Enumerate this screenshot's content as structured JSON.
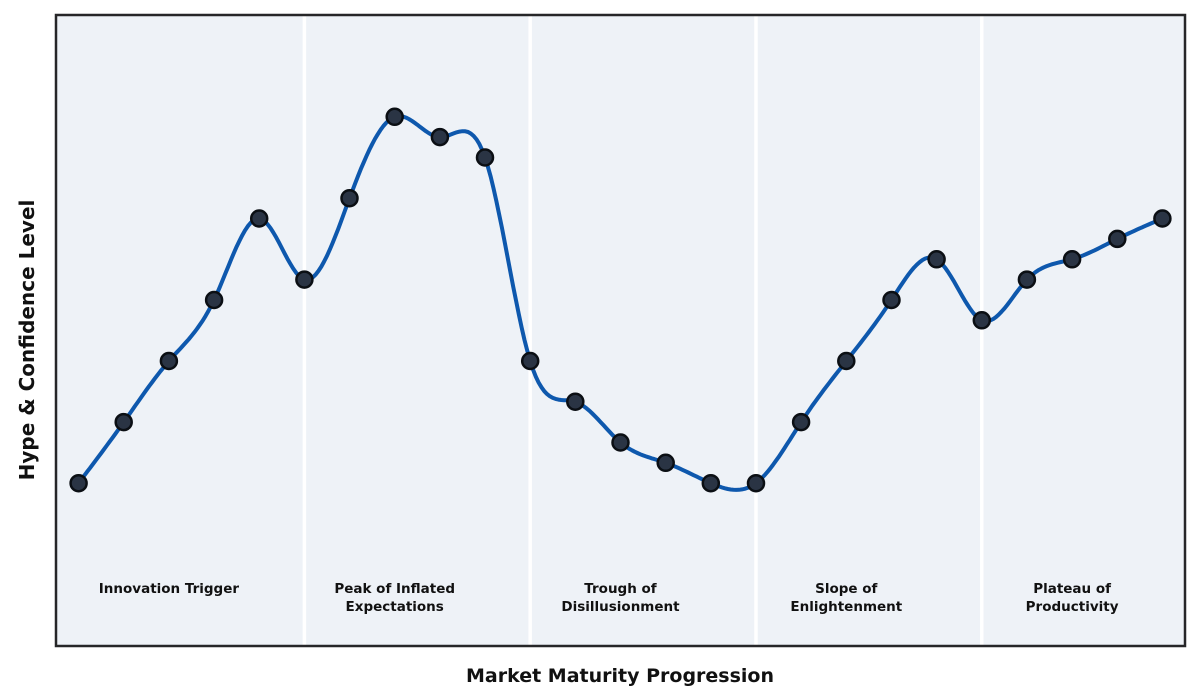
{
  "chart_data": {
    "type": "line",
    "title": "",
    "xlabel": "Market Maturity Progression",
    "ylabel": "Hype & Confidence Level",
    "x": [
      0,
      1,
      2,
      3,
      4,
      5,
      6,
      7,
      8,
      9,
      10,
      11,
      12,
      13,
      14,
      15,
      16,
      17,
      18,
      19,
      20,
      21,
      22,
      23,
      24
    ],
    "values": [
      10,
      25,
      40,
      55,
      75,
      60,
      80,
      100,
      95,
      90,
      40,
      30,
      20,
      15,
      10,
      10,
      25,
      40,
      55,
      65,
      50,
      60,
      65,
      70,
      75
    ],
    "xlim": [
      -0.5,
      24.5
    ],
    "ylim": [
      -30,
      125
    ],
    "grid": false,
    "legend": false,
    "y_ticks_visible": false,
    "x_ticks_visible": false,
    "phase_dividers_x": [
      5,
      10,
      15,
      20
    ],
    "phases": [
      {
        "lines": [
          "Innovation Trigger"
        ],
        "center_x": 2
      },
      {
        "lines": [
          "Peak of Inflated",
          "Expectations"
        ],
        "center_x": 7
      },
      {
        "lines": [
          "Trough of",
          "Disillusionment"
        ],
        "center_x": 12
      },
      {
        "lines": [
          "Slope of",
          "Enlightenment"
        ],
        "center_x": 17
      },
      {
        "lines": [
          "Plateau of",
          "Productivity"
        ],
        "center_x": 22
      }
    ],
    "colors": {
      "line": "#0e58ad",
      "marker_fill": "#2a3444",
      "marker_edge": "#0b0f14",
      "panel_bg": "#eef2f7",
      "divider": "#ffffff",
      "border": "#262628",
      "label_text": "#111111",
      "figure_bg": "#ffffff"
    },
    "style": {
      "line_width": 4,
      "marker_radius": 8,
      "marker_edge_width": 2.5,
      "divider_width": 3.5,
      "border_width": 2.5
    }
  }
}
